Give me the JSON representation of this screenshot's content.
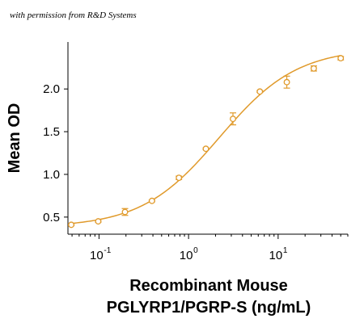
{
  "caption": "with permission from R&D Systems",
  "chart_data": {
    "type": "scatter",
    "title": "",
    "xlabel_line1": "Recombinant Mouse",
    "xlabel_line2": "PGLYRP1/PGRP-S (ng/mL)",
    "ylabel": "Mean OD",
    "x_scale": "log",
    "xlim": [
      0.045,
      60
    ],
    "ylim": [
      0.3,
      2.55
    ],
    "x_ticks": [
      {
        "value": 0.1,
        "base": "10",
        "exp": "-1"
      },
      {
        "value": 1,
        "base": "10",
        "exp": "0"
      },
      {
        "value": 10,
        "base": "10",
        "exp": "1"
      }
    ],
    "y_ticks": [
      {
        "value": 0.5,
        "label": "0.5"
      },
      {
        "value": 1.0,
        "label": "1.0"
      },
      {
        "value": 1.5,
        "label": "1.5"
      },
      {
        "value": 2.0,
        "label": "2.0"
      }
    ],
    "grid": false,
    "color": "#E09A2B",
    "points": [
      {
        "x": 0.049,
        "y": 0.41,
        "err": 0.01
      },
      {
        "x": 0.098,
        "y": 0.45,
        "err": 0.01
      },
      {
        "x": 0.195,
        "y": 0.56,
        "err": 0.04
      },
      {
        "x": 0.39,
        "y": 0.69,
        "err": 0.01
      },
      {
        "x": 0.78,
        "y": 0.96,
        "err": 0.02
      },
      {
        "x": 1.56,
        "y": 1.3,
        "err": 0.01
      },
      {
        "x": 3.13,
        "y": 1.65,
        "err": 0.07
      },
      {
        "x": 6.25,
        "y": 1.97,
        "err": 0.01
      },
      {
        "x": 12.5,
        "y": 2.08,
        "err": 0.07
      },
      {
        "x": 25,
        "y": 2.24,
        "err": 0.03
      },
      {
        "x": 50,
        "y": 2.36,
        "err": 0.02
      }
    ],
    "fit": {
      "bottom": 0.38,
      "top": 2.48,
      "ec50": 2.2,
      "hill": 1.0
    }
  }
}
